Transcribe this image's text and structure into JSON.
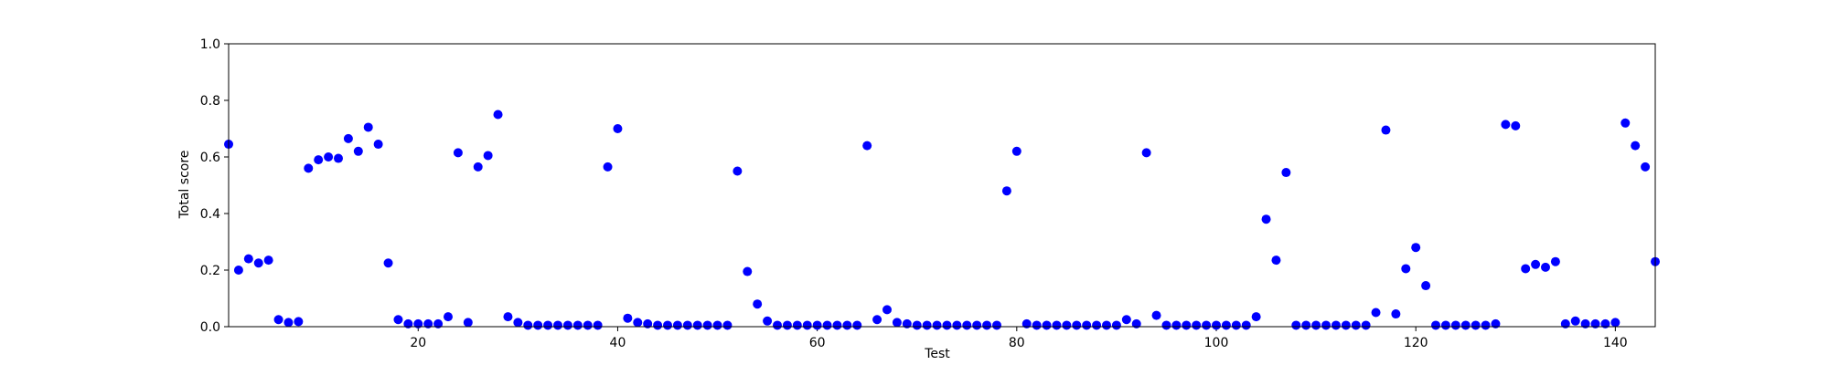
{
  "chart_data": {
    "type": "scatter",
    "color": "#0000ff",
    "x_label": "Test",
    "y_label": "Total score",
    "x": [
      1,
      2,
      3,
      4,
      5,
      6,
      7,
      8,
      9,
      10,
      11,
      12,
      13,
      14,
      15,
      16,
      17,
      18,
      19,
      20,
      21,
      22,
      23,
      24,
      25,
      26,
      27,
      28,
      29,
      30,
      31,
      32,
      33,
      34,
      35,
      36,
      37,
      38,
      39,
      40,
      41,
      42,
      43,
      44,
      45,
      46,
      47,
      48,
      49,
      50,
      51,
      52,
      53,
      54,
      55,
      56,
      57,
      58,
      59,
      60,
      61,
      62,
      63,
      64,
      65,
      66,
      67,
      68,
      69,
      70,
      71,
      72,
      73,
      74,
      75,
      76,
      77,
      78,
      79,
      80,
      81,
      82,
      83,
      84,
      85,
      86,
      87,
      88,
      89,
      90,
      91,
      92,
      93,
      94,
      95,
      96,
      97,
      98,
      99,
      100,
      101,
      102,
      103,
      104,
      105,
      106,
      107,
      108,
      109,
      110,
      111,
      112,
      113,
      114,
      115,
      116,
      117,
      118,
      119,
      120,
      121,
      122,
      123,
      124,
      125,
      126,
      127,
      128,
      129,
      130,
      131,
      132,
      133,
      134,
      135,
      136,
      137,
      138,
      139,
      140,
      141,
      142,
      143,
      144
    ],
    "values": [
      0.645,
      0.2,
      0.24,
      0.225,
      0.235,
      0.025,
      0.015,
      0.018,
      0.56,
      0.59,
      0.6,
      0.595,
      0.665,
      0.62,
      0.705,
      0.645,
      0.225,
      0.025,
      0.01,
      0.01,
      0.01,
      0.01,
      0.035,
      0.615,
      0.015,
      0.565,
      0.605,
      0.75,
      0.035,
      0.015,
      0.005,
      0.005,
      0.005,
      0.005,
      0.005,
      0.005,
      0.005,
      0.005,
      0.565,
      0.7,
      0.03,
      0.015,
      0.01,
      0.005,
      0.005,
      0.005,
      0.005,
      0.005,
      0.005,
      0.005,
      0.005,
      0.55,
      0.195,
      0.08,
      0.02,
      0.005,
      0.005,
      0.005,
      0.005,
      0.005,
      0.005,
      0.005,
      0.005,
      0.005,
      0.64,
      0.025,
      0.06,
      0.015,
      0.01,
      0.005,
      0.005,
      0.005,
      0.005,
      0.005,
      0.005,
      0.005,
      0.005,
      0.005,
      0.48,
      0.62,
      0.01,
      0.005,
      0.005,
      0.005,
      0.005,
      0.005,
      0.005,
      0.005,
      0.005,
      0.005,
      0.025,
      0.01,
      0.615,
      0.04,
      0.005,
      0.005,
      0.005,
      0.005,
      0.005,
      0.005,
      0.005,
      0.005,
      0.005,
      0.035,
      0.38,
      0.235,
      0.545,
      0.005,
      0.005,
      0.005,
      0.005,
      0.005,
      0.005,
      0.005,
      0.005,
      0.05,
      0.695,
      0.045,
      0.205,
      0.28,
      0.145,
      0.005,
      0.005,
      0.005,
      0.005,
      0.005,
      0.005,
      0.01,
      0.715,
      0.71,
      0.205,
      0.22,
      0.21,
      0.23,
      0.01,
      0.02,
      0.01,
      0.01,
      0.01,
      0.015,
      0.72,
      0.64,
      0.565,
      0.23
    ],
    "xlim": [
      1,
      144
    ],
    "xticks": [
      20,
      40,
      60,
      80,
      100,
      120,
      140
    ],
    "ylim": [
      0,
      1
    ],
    "yticks": [
      {
        "value": 0,
        "label": "0.0"
      },
      {
        "value": 0.2,
        "label": "0.2"
      },
      {
        "value": 0.4,
        "label": "0.4"
      },
      {
        "value": 0.6,
        "label": "0.6"
      },
      {
        "value": 0.8,
        "label": "0.8"
      },
      {
        "value": 1,
        "label": "1.0"
      }
    ]
  }
}
